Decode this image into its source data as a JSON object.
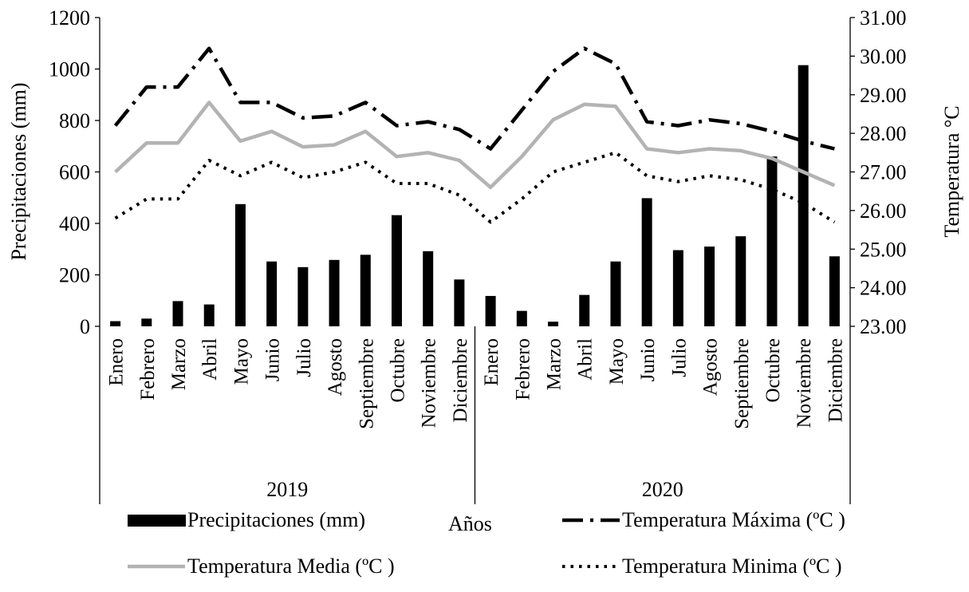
{
  "chart_data": {
    "type": "bar",
    "years": [
      "2019",
      "2020"
    ],
    "categories": [
      "Enero",
      "Febrero",
      "Marzo",
      "Abril",
      "Mayo",
      "Junio",
      "Julio",
      "Agosto",
      "Septiembre",
      "Octubre",
      "Noviembre",
      "Diciembre",
      "Enero",
      "Febrero",
      "Marzo",
      "Abril",
      "Mayo",
      "Junio",
      "Julio",
      "Agosto",
      "Septiembre",
      "Octubre",
      "Noviembre",
      "Diciembre"
    ],
    "xlabel": "Años",
    "ylabel_left": "Precipitaciones (mm)",
    "ylabel_right": "Temperatura °C",
    "ylim_left": [
      0,
      1200
    ],
    "yticks_left": [
      "0",
      "200",
      "400",
      "600",
      "800",
      "1000",
      "1200"
    ],
    "ylim_right": [
      23,
      31
    ],
    "yticks_right": [
      "23.00",
      "24.00",
      "25.00",
      "26.00",
      "27.00",
      "28.00",
      "29.00",
      "30.00",
      "31.00"
    ],
    "series": [
      {
        "name": "Precipitaciones (mm)",
        "type": "bar",
        "axis": "left",
        "color": "#000000",
        "values": [
          20,
          30,
          98,
          85,
          475,
          252,
          230,
          258,
          278,
          432,
          292,
          182,
          118,
          60,
          18,
          122,
          252,
          498,
          296,
          310,
          350,
          660,
          1015,
          272
        ]
      },
      {
        "name": "Temperatura Máxima  (ºC )",
        "type": "line",
        "style": "dash-dot",
        "axis": "right",
        "color": "#000000",
        "values": [
          28.2,
          29.2,
          29.2,
          30.2,
          28.8,
          28.8,
          28.4,
          28.45,
          28.8,
          28.2,
          28.3,
          28.1,
          27.6,
          28.6,
          29.6,
          30.2,
          29.8,
          28.3,
          28.2,
          28.35,
          28.25,
          28.05,
          27.8,
          27.6
        ]
      },
      {
        "name": "Temperatura Media  (ºC )",
        "type": "line",
        "style": "solid",
        "axis": "right",
        "color": "#b3b3b3",
        "values": [
          27.0,
          27.75,
          27.75,
          28.8,
          27.8,
          28.05,
          27.65,
          27.7,
          28.05,
          27.4,
          27.5,
          27.3,
          26.6,
          27.4,
          28.35,
          28.75,
          28.7,
          27.6,
          27.5,
          27.6,
          27.55,
          27.35,
          27.0,
          26.65
        ]
      },
      {
        "name": "Temperatura Minima  (ºC )",
        "type": "line",
        "style": "dotted",
        "axis": "right",
        "color": "#000000",
        "values": [
          25.8,
          26.3,
          26.3,
          27.3,
          26.9,
          27.25,
          26.85,
          27.0,
          27.25,
          26.7,
          26.7,
          26.4,
          25.7,
          26.3,
          27.0,
          27.25,
          27.5,
          26.9,
          26.75,
          26.9,
          26.8,
          26.55,
          26.2,
          25.7
        ]
      }
    ],
    "legend_placement": "bottom",
    "grid": false
  }
}
